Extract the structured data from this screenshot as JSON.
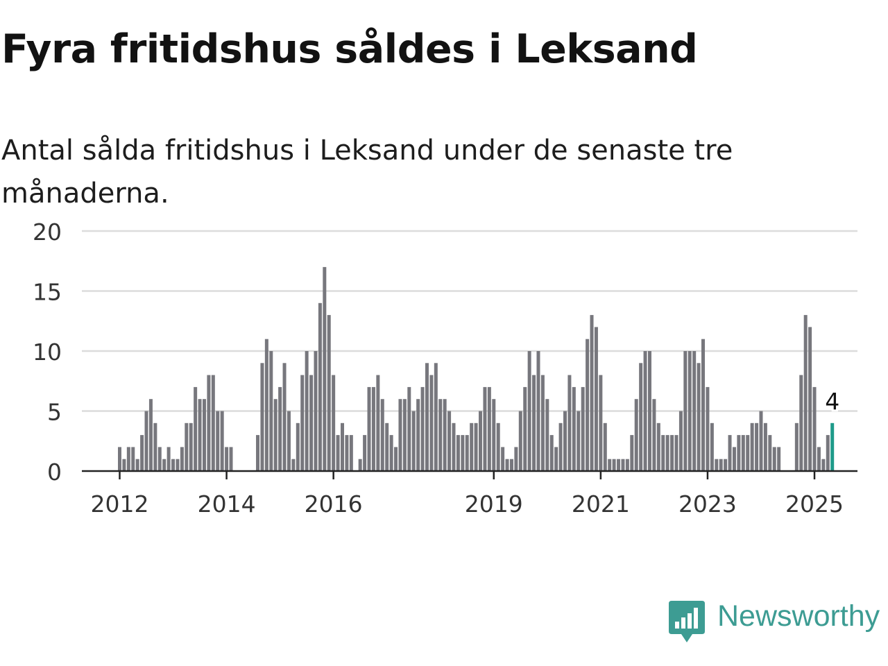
{
  "chart_data": {
    "type": "bar",
    "title": "Fyra fritidshus såldes i Leksand",
    "subtitle": "Antal sålda fritidshus i Leksand under de senaste tre månaderna.",
    "xlabel": "",
    "ylabel": "",
    "ylim": [
      0,
      20
    ],
    "yticks": [
      0,
      5,
      10,
      15,
      20
    ],
    "xticks": [
      "2012",
      "2014",
      "2016",
      "2019",
      "2021",
      "2023",
      "2025"
    ],
    "grid": true,
    "legend": "none",
    "start_year": 2012,
    "values": [
      2,
      1,
      2,
      2,
      1,
      3,
      5,
      6,
      4,
      2,
      1,
      2,
      1,
      1,
      2,
      4,
      4,
      7,
      6,
      6,
      8,
      8,
      5,
      5,
      2,
      2,
      0,
      0,
      0,
      0,
      0,
      3,
      9,
      11,
      10,
      6,
      7,
      9,
      5,
      1,
      4,
      8,
      10,
      8,
      10,
      14,
      17,
      13,
      8,
      3,
      4,
      3,
      3,
      0,
      1,
      3,
      7,
      7,
      8,
      6,
      4,
      3,
      2,
      6,
      6,
      7,
      5,
      6,
      7,
      9,
      8,
      9,
      6,
      6,
      5,
      4,
      3,
      3,
      3,
      4,
      4,
      5,
      7,
      7,
      6,
      4,
      2,
      1,
      1,
      2,
      5,
      7,
      10,
      8,
      10,
      8,
      6,
      3,
      2,
      4,
      5,
      8,
      7,
      5,
      7,
      11,
      13,
      12,
      8,
      4,
      1,
      1,
      1,
      1,
      1,
      3,
      6,
      9,
      10,
      10,
      6,
      4,
      3,
      3,
      3,
      3,
      5,
      10,
      10,
      10,
      9,
      11,
      7,
      4,
      1,
      1,
      1,
      3,
      2,
      3,
      3,
      3,
      4,
      4,
      5,
      4,
      3,
      2,
      2,
      0,
      0,
      0,
      4,
      8,
      13,
      12,
      7,
      2,
      1,
      3,
      4
    ],
    "highlight_label": "4",
    "bar_color": "#77777d",
    "highlight_color": "#1e9b8a"
  },
  "logo": {
    "text": "Newsworthy",
    "color": "#3d9c93"
  }
}
